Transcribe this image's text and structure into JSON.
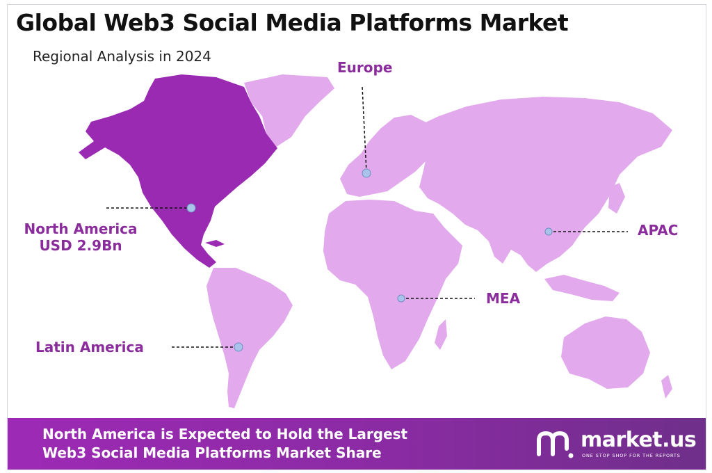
{
  "title": "Global Web3 Social Media Platforms Market",
  "subtitle": "Regional Analysis in 2024",
  "colors": {
    "highlight_region": "#9b2ab3",
    "other_regions": "#e2a9ec",
    "label_text": "#8b2c9c",
    "marker": "#a9c3ea",
    "footer_band": "#9d2ab5"
  },
  "regions": [
    {
      "id": "north-america",
      "label": "North America",
      "value": "USD 2.9Bn",
      "highlighted": true
    },
    {
      "id": "europe",
      "label": "Europe"
    },
    {
      "id": "apac",
      "label": "APAC"
    },
    {
      "id": "mea",
      "label": "MEA"
    },
    {
      "id": "latin-america",
      "label": "Latin America"
    }
  ],
  "footer": {
    "line1": "North America is Expected to Hold the Largest",
    "line2": "Web3 Social Media Platforms Market Share"
  },
  "logo": {
    "name": "market.us",
    "tagline": "ONE STOP SHOP FOR THE REPORTS",
    "icon": "market-us-logo-icon"
  }
}
